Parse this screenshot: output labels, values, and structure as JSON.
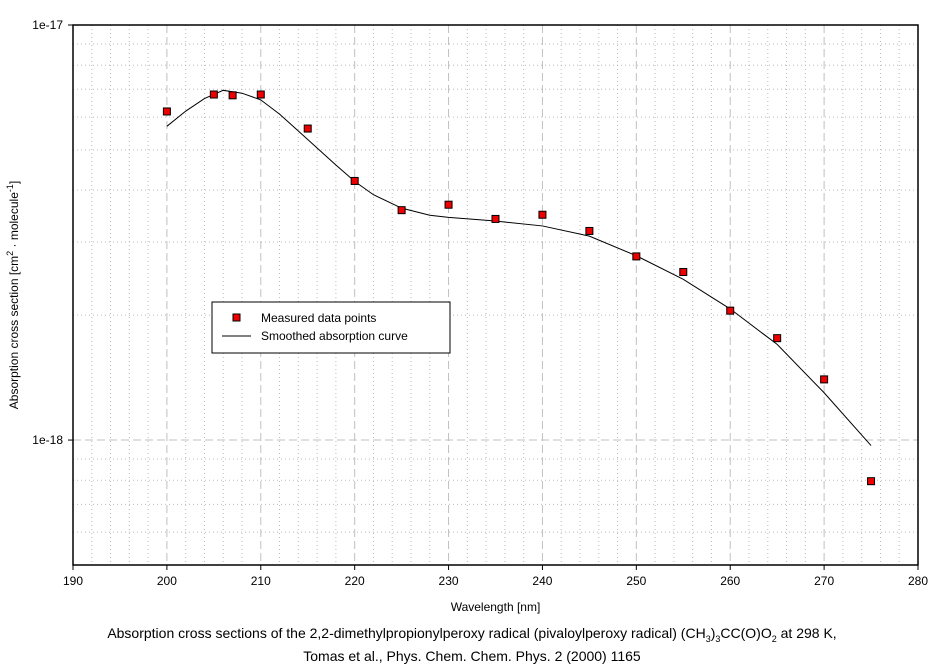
{
  "chart_data": {
    "type": "scatter",
    "title": "",
    "xlabel": "Wavelength [nm]",
    "ylabel_parts": [
      "Absorption cross section [cm",
      "2",
      " · molecule",
      "-1",
      "]"
    ],
    "xlim": [
      190,
      280
    ],
    "ylim": [
      5e-19,
      1e-17
    ],
    "yscale": "log",
    "xticks": [
      190,
      200,
      210,
      220,
      230,
      240,
      250,
      260,
      270,
      280
    ],
    "yticks": [
      {
        "v": 1e-17,
        "label": "1e-17"
      },
      {
        "v": 1e-18,
        "label": "1e-18"
      }
    ],
    "grid": true,
    "legend_position": "center-left",
    "series": [
      {
        "name": "Measured data points",
        "kind": "markers",
        "color": "#ee0000",
        "x": [
          200,
          205,
          207,
          210,
          215,
          220,
          225,
          230,
          235,
          240,
          245,
          250,
          255,
          260,
          265,
          270,
          275
        ],
        "y": [
          6.19e-18,
          6.8e-18,
          6.77e-18,
          6.8e-18,
          5.63e-18,
          4.21e-18,
          3.58e-18,
          3.69e-18,
          3.41e-18,
          3.49e-18,
          3.19e-18,
          2.77e-18,
          2.54e-18,
          2.05e-18,
          1.76e-18,
          1.4e-18,
          7.96e-19
        ]
      },
      {
        "name": "Smoothed absorption curve",
        "kind": "line",
        "color": "#000000",
        "x": [
          200,
          202,
          204,
          206,
          208,
          210,
          212,
          215,
          218,
          220,
          222,
          225,
          228,
          230,
          235,
          240,
          245,
          250,
          255,
          260,
          265,
          270,
          275
        ],
        "y": [
          5.7e-18,
          6.2e-18,
          6.65e-18,
          6.96e-18,
          6.85e-18,
          6.6e-18,
          6.1e-18,
          5.3e-18,
          4.6e-18,
          4.2e-18,
          3.9e-18,
          3.62e-18,
          3.48e-18,
          3.44e-18,
          3.37e-18,
          3.28e-18,
          3.1e-18,
          2.78e-18,
          2.44e-18,
          2.07e-18,
          1.7e-18,
          1.3e-18,
          9.7e-19
        ]
      }
    ]
  },
  "caption": {
    "line1_a": "Absorption cross sections of the 2,2-dimethylpropionylperoxy radical (pivaloylperoxy radical) (CH",
    "sub1": "3",
    "line1_b": ")",
    "sub2": "3",
    "line1_c": "CC(O)O",
    "sub3": "2",
    "line1_d": " at 298 K,",
    "line2": "Tomas et al., Phys. Chem. Chem. Phys. 2 (2000) 1165"
  }
}
